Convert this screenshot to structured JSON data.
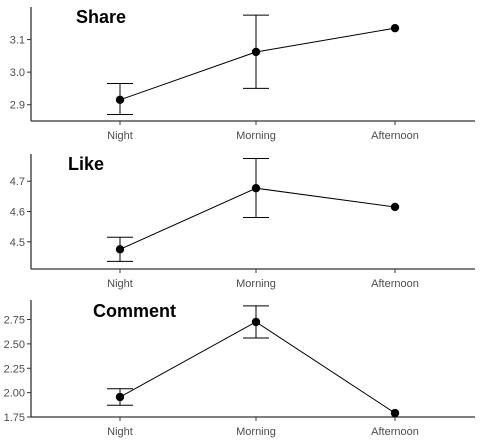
{
  "chart_data": [
    {
      "type": "line",
      "title": "Share",
      "categories": [
        "Night",
        "Morning",
        "Afternoon"
      ],
      "values": [
        2.915,
        3.062,
        3.135
      ],
      "error_low": [
        2.87,
        2.95,
        3.135
      ],
      "error_high": [
        2.965,
        3.175,
        3.135
      ],
      "yticks": [
        "2.9",
        "3.0",
        "3.1"
      ],
      "ylim": [
        2.85,
        3.2
      ],
      "grid": false
    },
    {
      "type": "line",
      "title": "Like",
      "categories": [
        "Night",
        "Morning",
        "Afternoon"
      ],
      "values": [
        4.475,
        4.677,
        4.615
      ],
      "error_low": [
        4.435,
        4.58,
        4.615
      ],
      "error_high": [
        4.515,
        4.775,
        4.615
      ],
      "yticks": [
        "4.5",
        "4.6",
        "4.7"
      ],
      "ylim": [
        4.41,
        4.79
      ],
      "grid": false
    },
    {
      "type": "line",
      "title": "Comment",
      "categories": [
        "Night",
        "Morning",
        "Afternoon"
      ],
      "values": [
        1.955,
        2.725,
        1.79
      ],
      "error_low": [
        1.87,
        2.56,
        1.79
      ],
      "error_high": [
        2.04,
        2.89,
        1.79
      ],
      "yticks": [
        "1.75",
        "2.00",
        "2.25",
        "2.50",
        "2.75"
      ],
      "ylim": [
        1.75,
        2.95
      ],
      "grid": false
    }
  ]
}
